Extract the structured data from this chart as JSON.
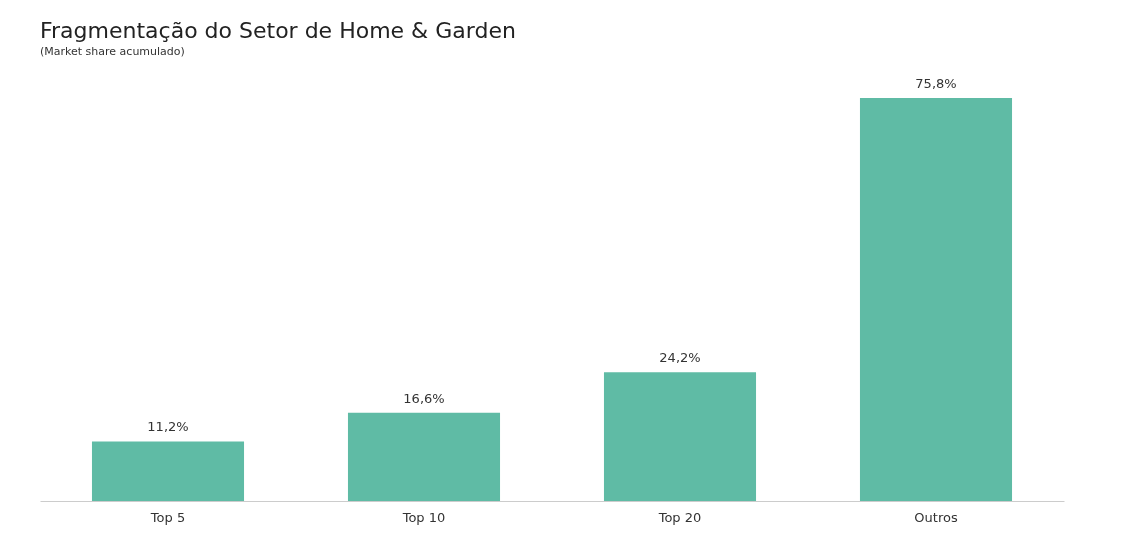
{
  "chart_data": {
    "type": "bar",
    "title": "Fragmentação do Setor de Home & Garden",
    "subtitle": "(Market share acumulado)",
    "categories": [
      "Top 5",
      "Top 10",
      "Top 20",
      "Outros"
    ],
    "values": [
      11.2,
      16.6,
      24.2,
      75.8
    ],
    "value_labels": [
      "11,2%",
      "16,6%",
      "24,2%",
      "75,8%"
    ],
    "color": "#5fbba5",
    "tick_labels": "x",
    "grid": false
  }
}
